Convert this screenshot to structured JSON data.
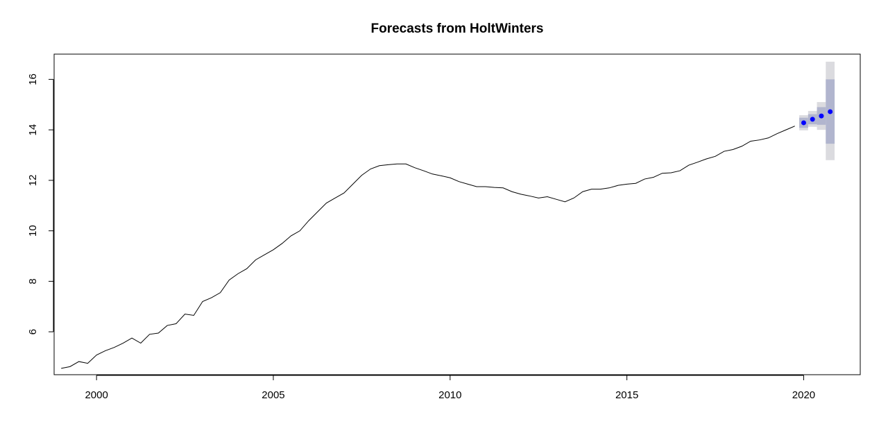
{
  "chart_data": {
    "type": "line",
    "title": "Forecasts from HoltWinters",
    "xlabel": "",
    "ylabel": "",
    "xlim": [
      1998.8,
      2021.6
    ],
    "ylim": [
      4.3,
      17.0
    ],
    "x_ticks": [
      2000,
      2005,
      2010,
      2015,
      2020
    ],
    "x_tick_labels": [
      "2000",
      "2005",
      "2010",
      "2015",
      "2020"
    ],
    "y_ticks": [
      6,
      8,
      10,
      12,
      14,
      16
    ],
    "y_tick_labels": [
      "6",
      "8",
      "10",
      "12",
      "14",
      "16"
    ],
    "series": [
      {
        "x": [
          1999.0,
          1999.25,
          1999.5,
          1999.75,
          2000.0,
          2000.25,
          2000.5,
          2000.75,
          2001.0,
          2001.25,
          2001.5,
          2001.75,
          2002.0,
          2002.25,
          2002.5,
          2002.75,
          2003.0,
          2003.25,
          2003.5,
          2003.75,
          2004.0,
          2004.25,
          2004.5,
          2004.75,
          2005.0,
          2005.25,
          2005.5,
          2005.75,
          2006.0,
          2006.25,
          2006.5,
          2006.75,
          2007.0,
          2007.25,
          2007.5,
          2007.75,
          2008.0,
          2008.25,
          2008.5,
          2008.75,
          2009.0,
          2009.25,
          2009.5,
          2009.75,
          2010.0,
          2010.25,
          2010.5,
          2010.75,
          2011.0,
          2011.25,
          2011.5,
          2011.75,
          2012.0,
          2012.25,
          2012.5,
          2012.75,
          2013.0,
          2013.25,
          2013.5,
          2013.75,
          2014.0,
          2014.25,
          2014.5,
          2014.75,
          2015.0,
          2015.25,
          2015.5,
          2015.75,
          2016.0,
          2016.25,
          2016.5,
          2016.75,
          2017.0,
          2017.25,
          2017.5,
          2017.75,
          2018.0,
          2018.25,
          2018.5,
          2018.75,
          2019.0,
          2019.25,
          2019.5,
          2019.75
        ],
        "values": [
          4.55,
          4.62,
          4.82,
          4.75,
          5.08,
          5.25,
          5.38,
          5.55,
          5.75,
          5.55,
          5.9,
          5.95,
          6.25,
          6.32,
          6.7,
          6.65,
          7.2,
          7.35,
          7.55,
          8.05,
          8.3,
          8.5,
          8.85,
          9.05,
          9.25,
          9.5,
          9.8,
          10.0,
          10.4,
          10.75,
          11.1,
          11.3,
          11.5,
          11.85,
          12.2,
          12.45,
          12.58,
          12.62,
          12.65,
          12.65,
          12.5,
          12.38,
          12.25,
          12.18,
          12.1,
          11.95,
          11.85,
          11.75,
          11.75,
          11.72,
          11.7,
          11.55,
          11.45,
          11.38,
          11.3,
          11.35,
          11.25,
          11.15,
          11.3,
          11.55,
          11.65,
          11.65,
          11.7,
          11.8,
          11.85,
          11.88,
          12.05,
          12.12,
          12.28,
          12.3,
          12.38,
          12.6,
          12.72,
          12.85,
          12.95,
          13.15,
          13.22,
          13.35,
          13.55,
          13.6,
          13.68,
          13.85,
          14.0,
          14.15
        ]
      }
    ],
    "forecast": {
      "x": [
        2020.0,
        2020.25,
        2020.5,
        2020.75
      ],
      "mean": [
        14.28,
        14.42,
        14.55,
        14.72
      ],
      "lo80": [
        14.08,
        14.22,
        14.2,
        13.45
      ],
      "hi80": [
        14.48,
        14.62,
        14.9,
        16.0
      ],
      "lo95": [
        13.98,
        14.12,
        14.0,
        12.8
      ],
      "hi95": [
        14.58,
        14.75,
        15.1,
        16.7
      ]
    },
    "colors": {
      "line": "#000000",
      "forecast_points": "#0000ff",
      "band80": "#b1b5ce",
      "band95": "#dbdbdf",
      "axis": "#000000",
      "background": "#ffffff"
    },
    "grid": false,
    "legend": "none"
  }
}
